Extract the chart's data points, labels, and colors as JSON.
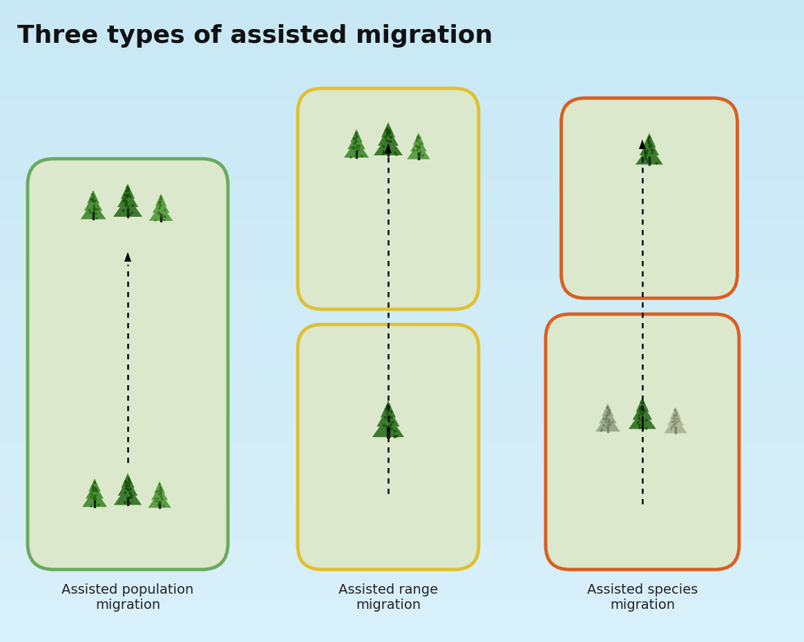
{
  "title": "Three types of assisted migration",
  "title_fontsize": 26,
  "title_fontweight": "bold",
  "labels": [
    "Assisted population\nmigration",
    "Assisted range\nmigration",
    "Assisted species\nmigration"
  ],
  "label_fontsize": 14,
  "box_fill": "#dce8cc",
  "border_colors": {
    "pop": "#6aaa5e",
    "range": "#e0c030",
    "species": "#d95f20"
  },
  "bg_color_tl": "#c5e8f5",
  "bg_color_br": "#e8f6fc",
  "tree_colors": {
    "dark": "#3d7a30",
    "mid": "#4d8f3a",
    "light": "#5da045",
    "gray1": "#9aaa88",
    "gray2": "#b0b89a"
  },
  "trunk_dark": "#1a1a1a",
  "trunk_gray": "#808070"
}
